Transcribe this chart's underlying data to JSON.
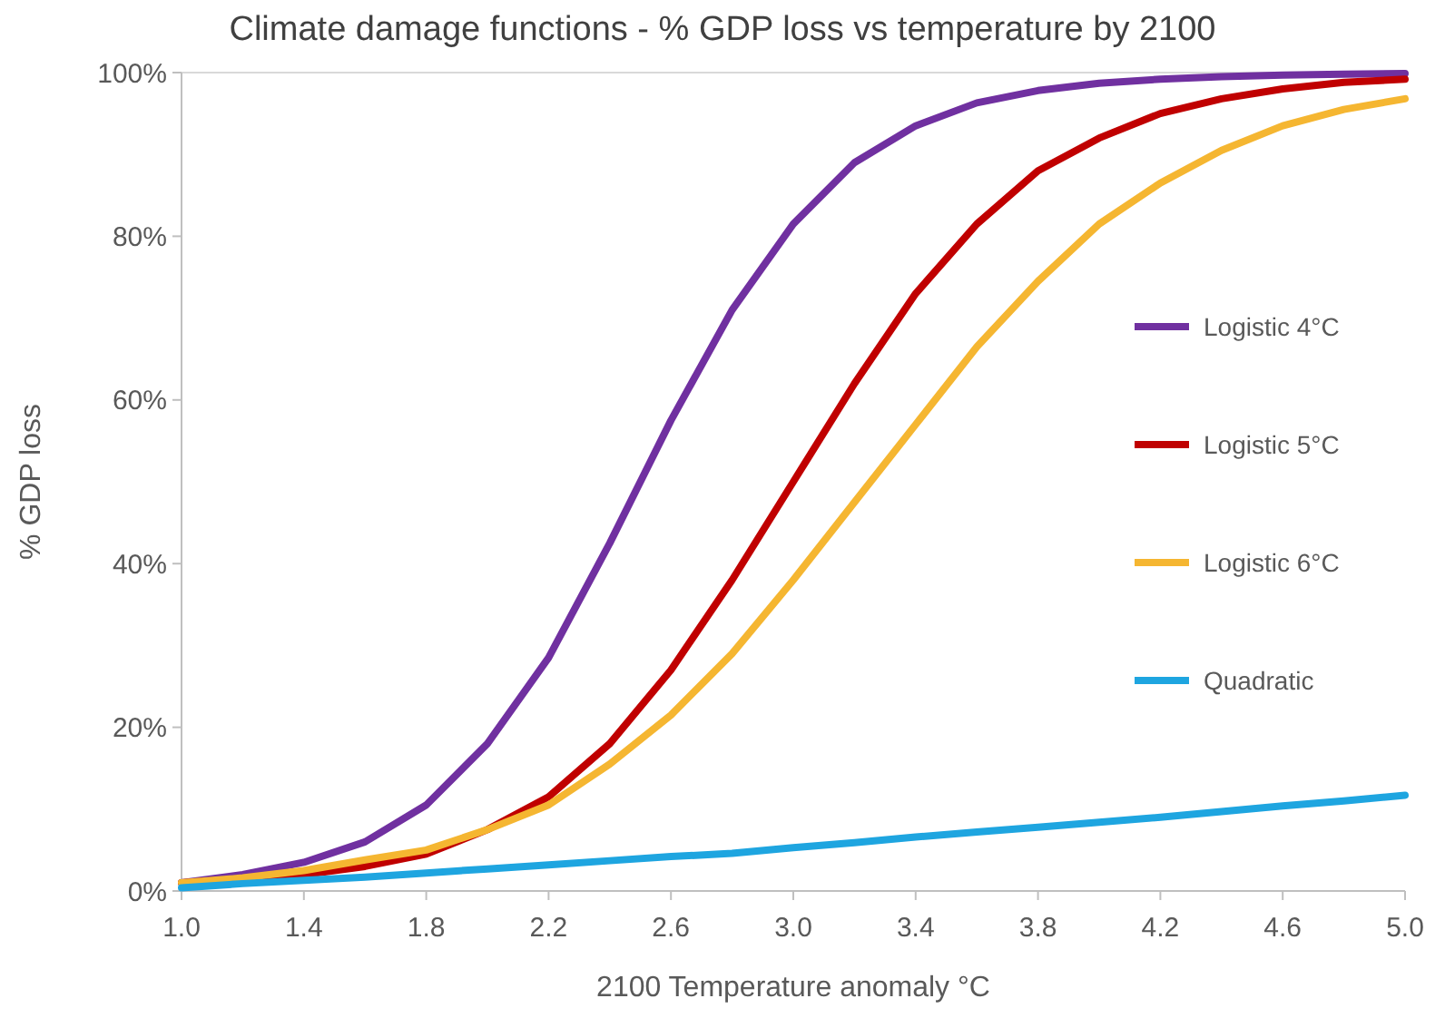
{
  "chart_data": {
    "type": "line",
    "title": "Climate damage functions - % GDP loss vs temperature by 2100",
    "xlabel": "2100 Temperature anomaly °C",
    "ylabel": "% GDP loss",
    "x": [
      1.0,
      1.2,
      1.4,
      1.6,
      1.8,
      2.0,
      2.2,
      2.4,
      2.6,
      2.8,
      3.0,
      3.2,
      3.4,
      3.6,
      3.8,
      4.0,
      4.2,
      4.4,
      4.6,
      4.8,
      5.0
    ],
    "series": [
      {
        "name": "Logistic 4°C",
        "color": "#7030a0",
        "values": [
          1,
          2,
          3.5,
          6,
          10.5,
          18,
          28.5,
          42.5,
          57.5,
          71,
          81.5,
          89,
          93.5,
          96.3,
          97.8,
          98.7,
          99.2,
          99.5,
          99.7,
          99.8,
          99.9
        ]
      },
      {
        "name": "Logistic 5°C",
        "color": "#c00000",
        "values": [
          1,
          1.5,
          2,
          3,
          4.5,
          7.5,
          11.5,
          18,
          27,
          38,
          50,
          62,
          73,
          81.5,
          88,
          92,
          95,
          96.8,
          98,
          98.8,
          99.2
        ]
      },
      {
        "name": "Logistic 6°C",
        "color": "#f5b631",
        "values": [
          1,
          1.6,
          2.5,
          3.8,
          5,
          7.5,
          10.5,
          15.5,
          21.5,
          29,
          38,
          47.5,
          57,
          66.5,
          74.5,
          81.5,
          86.5,
          90.5,
          93.5,
          95.5,
          96.8
        ]
      },
      {
        "name": "Quadratic",
        "color": "#1ea5e0",
        "values": [
          0.4,
          0.9,
          1.3,
          1.7,
          2.2,
          2.7,
          3.2,
          3.7,
          4.2,
          4.6,
          5.3,
          5.9,
          6.6,
          7.2,
          7.8,
          8.4,
          9.0,
          9.7,
          10.4,
          11.0,
          11.7
        ]
      }
    ],
    "xlim": [
      1.0,
      5.0
    ],
    "xticks": [
      {
        "value": 1.0,
        "label": "1.0"
      },
      {
        "value": 1.4,
        "label": "1.4"
      },
      {
        "value": 1.8,
        "label": "1.8"
      },
      {
        "value": 2.2,
        "label": "2.2"
      },
      {
        "value": 2.6,
        "label": "2.6"
      },
      {
        "value": 3.0,
        "label": "3.0"
      },
      {
        "value": 3.4,
        "label": "3.4"
      },
      {
        "value": 3.8,
        "label": "3.8"
      },
      {
        "value": 4.2,
        "label": "4.2"
      },
      {
        "value": 4.6,
        "label": "4.6"
      },
      {
        "value": 5.0,
        "label": "5.0"
      }
    ],
    "ylim": [
      0,
      100
    ],
    "yticks": [
      {
        "value": 0,
        "label": "0%"
      },
      {
        "value": 20,
        "label": "20%"
      },
      {
        "value": 40,
        "label": "40%"
      },
      {
        "value": 60,
        "label": "60%"
      },
      {
        "value": 80,
        "label": "80%"
      },
      {
        "value": 100,
        "label": "100%"
      }
    ],
    "legend": "right",
    "marker": "none",
    "line_style": "solid"
  }
}
